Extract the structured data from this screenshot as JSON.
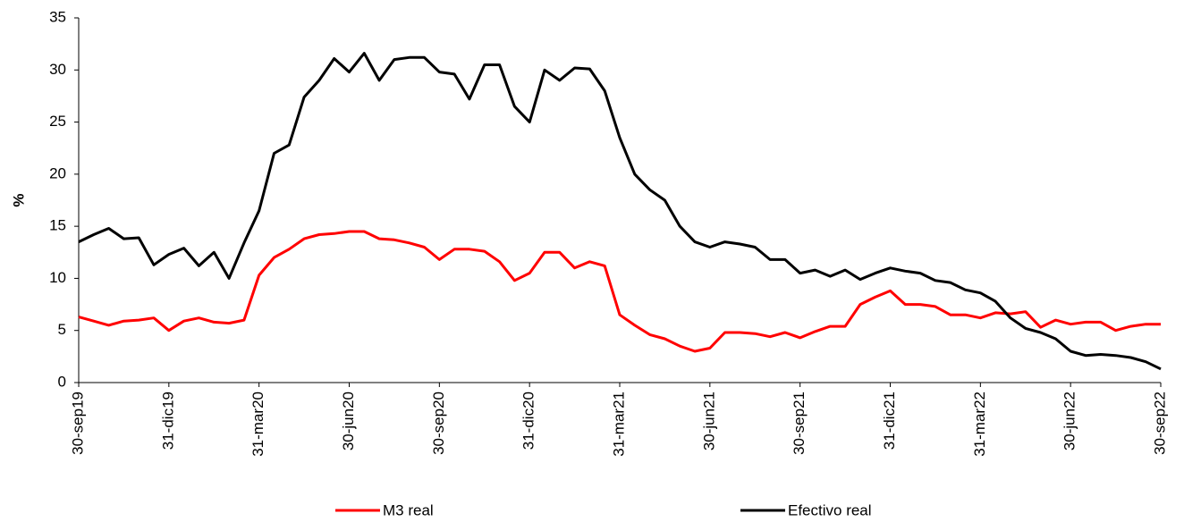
{
  "chart_data": {
    "type": "line",
    "ylabel": "%",
    "categories": [
      "30-sep19",
      null,
      null,
      null,
      null,
      null,
      "31-dic19",
      null,
      null,
      null,
      null,
      null,
      "31-mar20",
      null,
      null,
      null,
      null,
      null,
      "30-jun20",
      null,
      null,
      null,
      null,
      null,
      "30-sep20",
      null,
      null,
      null,
      null,
      null,
      "31-dic20",
      null,
      null,
      null,
      null,
      null,
      "31-mar21",
      null,
      null,
      null,
      null,
      null,
      "30-jun21",
      null,
      null,
      null,
      null,
      null,
      "30-sep21",
      null,
      null,
      null,
      null,
      null,
      "31-dic21",
      null,
      null,
      null,
      null,
      null,
      "31-mar22",
      null,
      null,
      null,
      null,
      null,
      "30-jun22",
      null,
      null,
      null,
      null,
      null,
      "30-sep22"
    ],
    "series": [
      {
        "name": "M3 real",
        "color": "#ff0000",
        "values": [
          6.3,
          5.9,
          5.5,
          5.9,
          6.0,
          6.2,
          5.0,
          5.9,
          6.2,
          5.8,
          5.7,
          6.0,
          10.3,
          12.0,
          12.8,
          13.8,
          14.2,
          14.3,
          14.5,
          14.5,
          13.8,
          13.7,
          13.4,
          13.0,
          11.8,
          12.8,
          12.8,
          12.6,
          11.6,
          9.8,
          10.5,
          12.5,
          12.5,
          11.0,
          11.6,
          11.2,
          6.5,
          5.5,
          4.6,
          4.2,
          3.5,
          3.0,
          3.3,
          4.8,
          4.8,
          4.7,
          4.4,
          4.8,
          4.3,
          4.9,
          5.4,
          5.4,
          7.5,
          8.2,
          8.8,
          7.5,
          7.5,
          7.3,
          6.5,
          6.5,
          6.2,
          6.7,
          6.6,
          6.8,
          5.3,
          6.0,
          5.6,
          5.8,
          5.8,
          5.0,
          5.4,
          5.6,
          5.6
        ]
      },
      {
        "name": "Efectivo real",
        "color": "#000000",
        "values": [
          13.5,
          14.2,
          14.8,
          13.8,
          13.9,
          11.3,
          12.3,
          12.9,
          11.2,
          12.5,
          10.0,
          13.4,
          16.5,
          22.0,
          22.8,
          27.4,
          29.0,
          31.1,
          29.8,
          31.6,
          29.0,
          31.0,
          31.2,
          31.2,
          29.8,
          29.6,
          27.2,
          30.5,
          30.5,
          26.5,
          25.0,
          30.0,
          29.0,
          30.2,
          30.1,
          28.0,
          23.5,
          20.0,
          18.5,
          17.5,
          15.0,
          13.5,
          13.0,
          13.5,
          13.3,
          13.0,
          11.8,
          11.8,
          10.5,
          10.8,
          10.2,
          10.8,
          9.9,
          10.5,
          11.0,
          10.7,
          10.5,
          9.8,
          9.6,
          8.9,
          8.6,
          7.8,
          6.2,
          5.2,
          4.8,
          4.2,
          3.0,
          2.6,
          2.7,
          2.6,
          2.4,
          2.0,
          1.3
        ]
      }
    ],
    "ylim": [
      0,
      35
    ],
    "yticks": [
      0,
      5,
      10,
      15,
      20,
      25,
      30,
      35
    ],
    "legend": "bottom"
  }
}
